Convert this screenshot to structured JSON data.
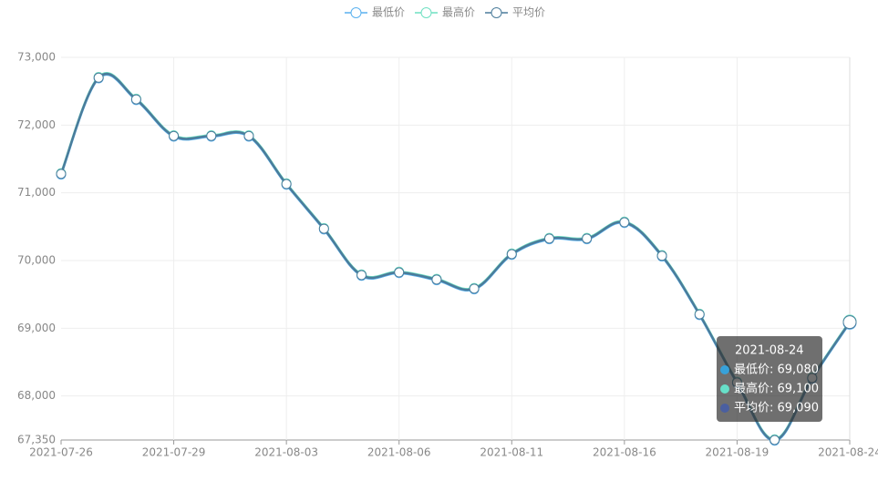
{
  "chart_data": {
    "type": "line",
    "smooth": true,
    "grid": true,
    "categories": [
      "2021-07-26",
      null,
      null,
      "2021-07-29",
      null,
      null,
      "2021-08-03",
      null,
      null,
      "2021-08-06",
      null,
      null,
      "2021-08-11",
      null,
      null,
      "2021-08-16",
      null,
      null,
      "2021-08-19",
      null,
      null,
      "2021-08-24"
    ],
    "series": [
      {
        "name": "最低价",
        "color": "#5ab1ef",
        "values": [
          71270,
          72690,
          72370,
          71830,
          71830,
          71830,
          71120,
          70460,
          69775,
          69815,
          69710,
          69575,
          70085,
          70315,
          70315,
          70555,
          70060,
          69195,
          68190,
          67340,
          68255,
          69080
        ]
      },
      {
        "name": "最高价",
        "color": "#6fe0c2",
        "values": [
          71290,
          72710,
          72390,
          71850,
          71850,
          71850,
          71140,
          70480,
          69795,
          69835,
          69730,
          69595,
          70105,
          70335,
          70335,
          70575,
          70080,
          69215,
          68210,
          67360,
          68275,
          69100
        ]
      },
      {
        "name": "平均价",
        "color": "#4b7c9b",
        "values": [
          71280,
          72700,
          72380,
          71840,
          71840,
          71840,
          71130,
          70470,
          69785,
          69825,
          69720,
          69585,
          70095,
          70325,
          70325,
          70565,
          70070,
          69205,
          68200,
          67350,
          68265,
          69090
        ]
      }
    ],
    "ylim": [
      67350,
      73000
    ],
    "yticks": [
      {
        "value": 67350,
        "label": "67,350"
      },
      {
        "value": 68000,
        "label": "68,000"
      },
      {
        "value": 69000,
        "label": "69,000"
      },
      {
        "value": 70000,
        "label": "70,000"
      },
      {
        "value": 71000,
        "label": "71,000"
      },
      {
        "value": 72000,
        "label": "72,000"
      },
      {
        "value": 73000,
        "label": "73,000"
      }
    ],
    "tooltip": {
      "title": "2021-08-24",
      "rows": [
        "最低价: 69,080",
        "最高价: 69,100",
        "平均价: 69,090"
      ],
      "colors": [
        "#37a2da",
        "#67e0c9",
        "#4a5fa0"
      ]
    }
  }
}
